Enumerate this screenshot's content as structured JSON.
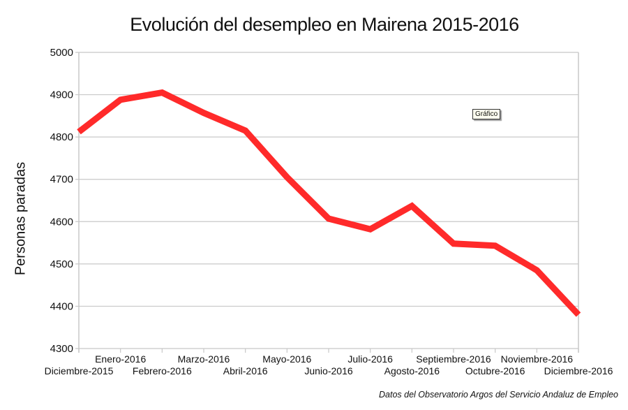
{
  "chart_data": {
    "type": "line",
    "title": "Evolución del desempleo en Mairena 2015-2016",
    "xlabel": "",
    "ylabel": "Personas paradas",
    "ylim": [
      4300,
      5000
    ],
    "yticks": [
      4300,
      4400,
      4500,
      4600,
      4700,
      4800,
      4900,
      5000
    ],
    "grid": true,
    "legend": "none",
    "categories": [
      "Diciembre-2015",
      "Enero-2016",
      "Febrero-2016",
      "Marzo-2016",
      "Abril-2016",
      "Mayo-2016",
      "Junio-2016",
      "Julio-2016",
      "Agosto-2016",
      "Septiembre-2016",
      "Octubre-2016",
      "Noviembre-2016",
      "Diciembre-2016"
    ],
    "series": [
      {
        "name": "Personas paradas",
        "color": "#ff2a2a",
        "values": [
          4812,
          4888,
          4905,
          4857,
          4815,
          4705,
          4607,
          4582,
          4637,
          4548,
          4543,
          4485,
          4380
        ]
      }
    ],
    "annotations": [
      "Gráfico"
    ],
    "source": "Datos del Observatorio Argos del Servicio Andaluz de Empleo"
  }
}
